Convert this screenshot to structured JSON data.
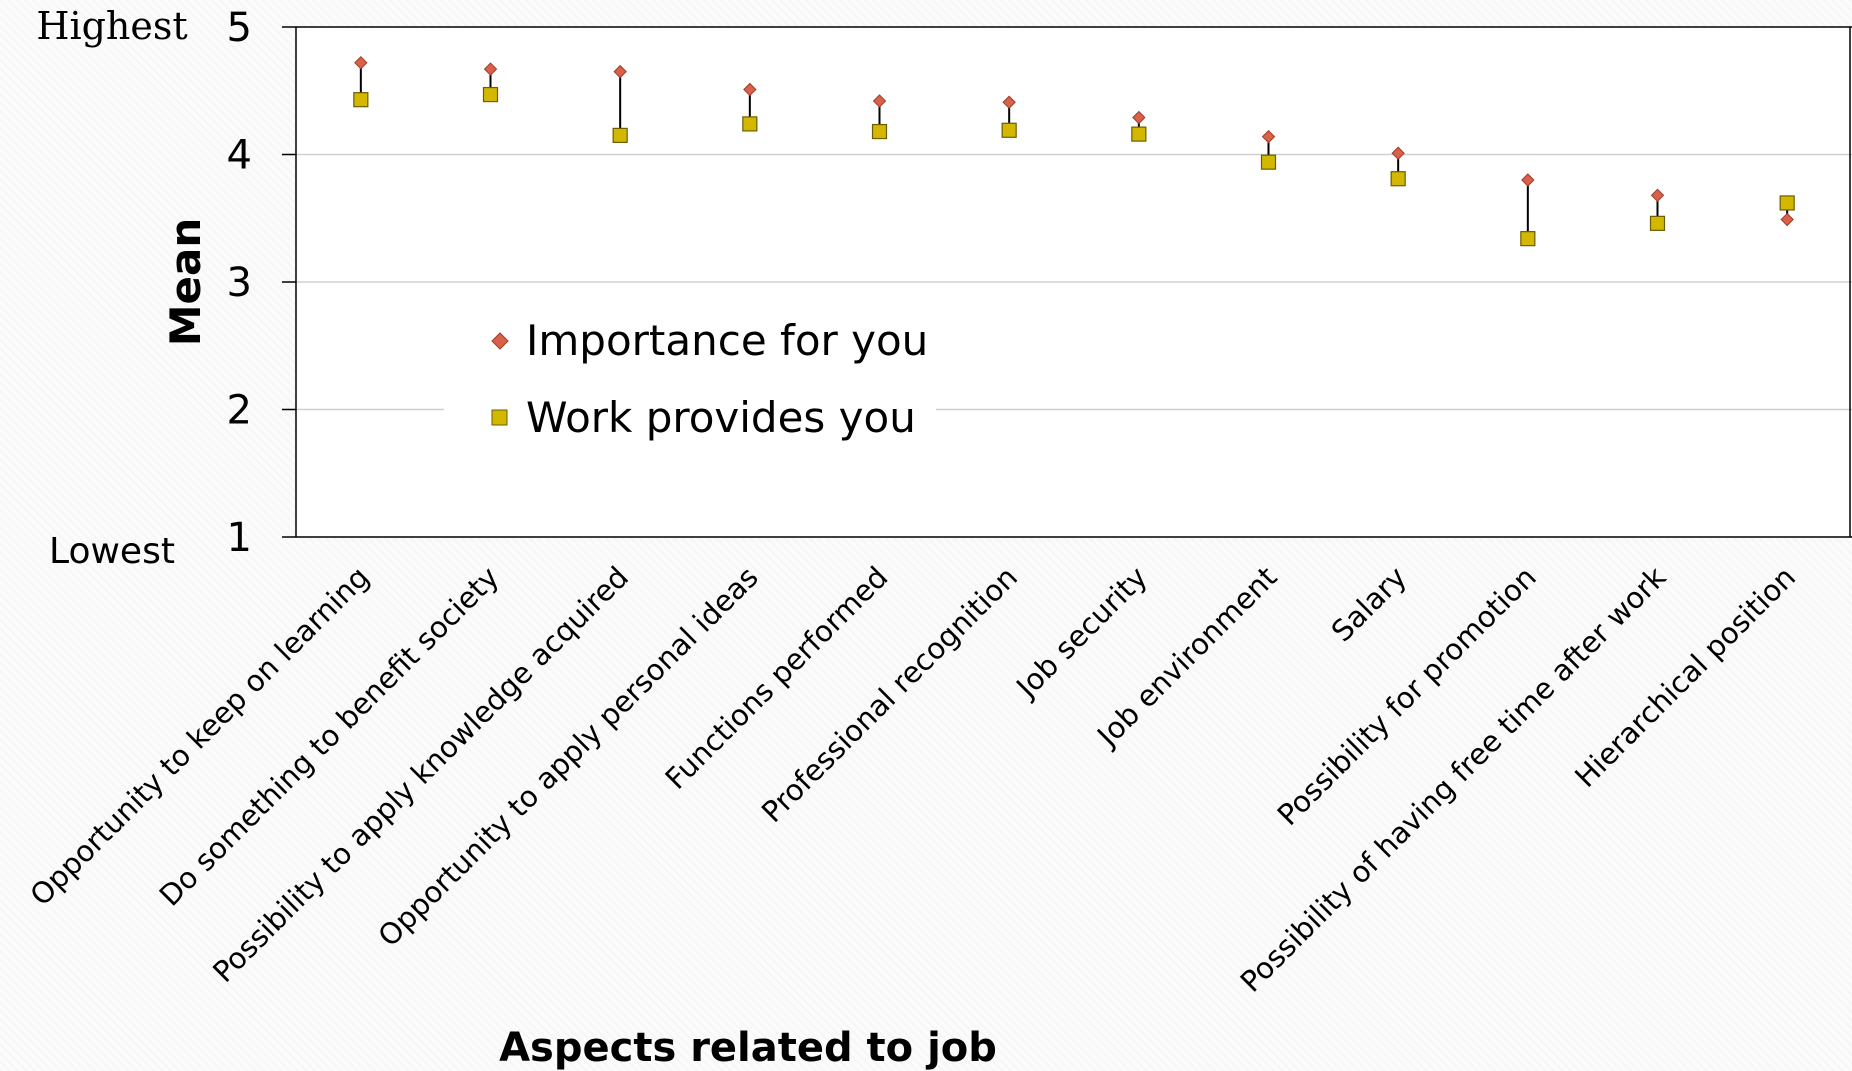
{
  "chart_data": {
    "type": "scatter",
    "xlabel": "Aspects related to job",
    "ylabel": "Mean",
    "ylim": [
      1,
      5
    ],
    "yticks": [
      1,
      2,
      3,
      4,
      5
    ],
    "ytick_labels": [
      "1",
      "2",
      "3",
      "4",
      "5"
    ],
    "scale_labels": {
      "high": "Highest",
      "low": "Lowest"
    },
    "grid": true,
    "legend_position": "center-left",
    "categories": [
      "Opportunity to keep on learning",
      "Do something to benefit society",
      "Possibility to apply knowledge acquired",
      "Opportunity to apply personal ideas",
      "Functions performed",
      "Professional recognition",
      "Job security",
      "Job environment",
      "Salary",
      "Possibility for promotion",
      "Possibility of having free time after work",
      "Hierarchical position"
    ],
    "series": [
      {
        "name": "Importance for you",
        "marker": "diamond",
        "color": "#d9614b",
        "values": [
          4.72,
          4.67,
          4.65,
          4.51,
          4.42,
          4.41,
          4.29,
          4.14,
          4.01,
          3.8,
          3.68,
          3.49
        ]
      },
      {
        "name": "Work provides you",
        "marker": "square",
        "color": "#d4b800",
        "values": [
          4.43,
          4.47,
          4.15,
          4.24,
          4.18,
          4.19,
          4.16,
          3.94,
          3.81,
          3.34,
          3.46,
          3.62
        ]
      }
    ],
    "connector_color": "#000000"
  }
}
